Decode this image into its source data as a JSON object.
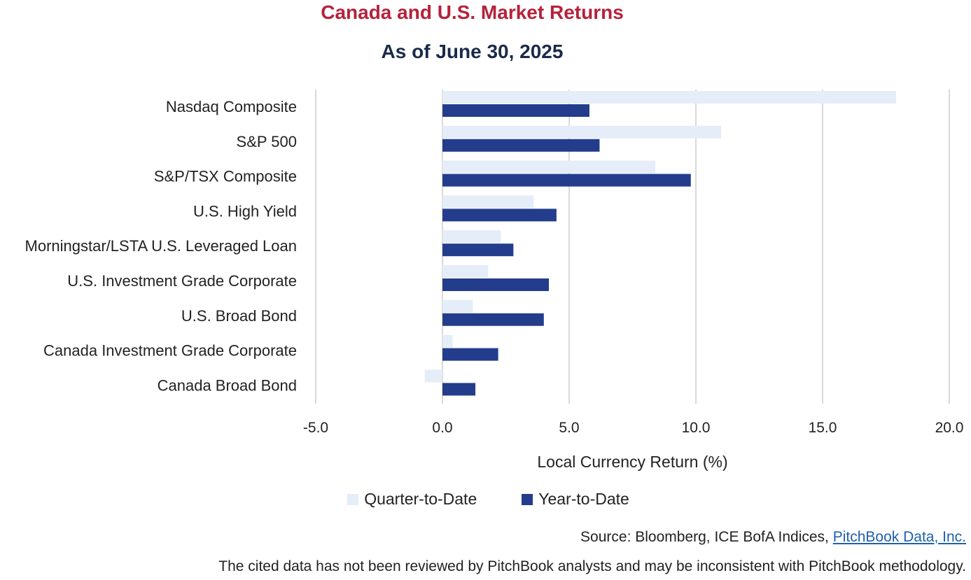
{
  "chart_data": {
    "type": "bar",
    "orientation": "horizontal",
    "title": "Canada and U.S. Market Returns",
    "subtitle": "As of June 30, 2025",
    "xlabel": "Local Currency Return (%)",
    "ylabel": "",
    "xlim": [
      -5,
      20
    ],
    "ticks": [
      "-5.0",
      "0.0",
      "5.0",
      "10.0",
      "15.0",
      "20.0"
    ],
    "tick_values": [
      -5,
      0,
      5,
      10,
      15,
      20
    ],
    "grid": "vertical",
    "legend_position": "bottom",
    "categories": [
      "Nasdaq Composite",
      "S&P 500",
      "S&P/TSX Composite",
      "U.S. High Yield",
      "Morningstar/LSTA U.S. Leveraged Loan",
      "U.S. Investment Grade Corporate",
      "U.S. Broad Bond",
      "Canada Investment Grade Corporate",
      "Canada Broad Bond"
    ],
    "series": [
      {
        "name": "Quarter-to-Date",
        "color": "#e4edf8",
        "values": [
          17.9,
          11.0,
          8.4,
          3.6,
          2.3,
          1.8,
          1.2,
          0.4,
          -0.7
        ]
      },
      {
        "name": "Year-to-Date",
        "color": "#233d8c",
        "values": [
          5.8,
          6.2,
          9.8,
          4.5,
          2.8,
          4.2,
          4.0,
          2.2,
          1.3
        ]
      }
    ]
  },
  "footer": {
    "source_prefix": "Source: Bloomberg, ICE BofA Indices, ",
    "source_link": "PitchBook Data, Inc.",
    "disclaimer": "The cited data has not been reviewed by PitchBook analysts and may be inconsistent with PitchBook methodology."
  }
}
